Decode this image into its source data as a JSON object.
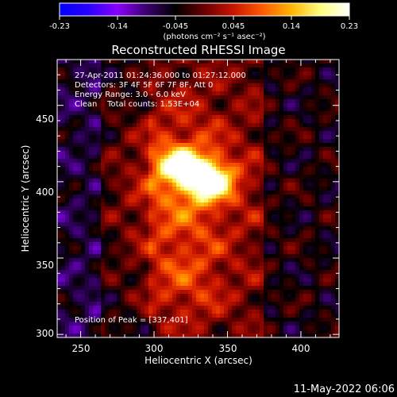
{
  "colorbar": {
    "ticks": [
      "-0.23",
      "-0.14",
      "-0.045",
      "0.045",
      "0.14",
      "0.23"
    ],
    "unit_label": "(photons cm⁻² s⁻¹ asec⁻²)"
  },
  "colors": {
    "background": "#000000",
    "text": "#ffffff",
    "colormap": [
      "#0000ff",
      "#2a00ff",
      "#8a00ff",
      "#3a006e",
      "#000000",
      "#6a0000",
      "#c81400",
      "#ff5a00",
      "#ffb400",
      "#ffff80",
      "#ffffff"
    ]
  },
  "chart_data": {
    "type": "heatmap",
    "title": "Reconstructed RHESSI Image",
    "xlabel": "Heliocentric X (arcsec)",
    "ylabel": "Heliocentric Y (arcsec)",
    "xlim": [
      234,
      426
    ],
    "ylim": [
      298,
      480
    ],
    "x_ticks": [
      250,
      300,
      350,
      400
    ],
    "y_ticks": [
      300,
      350,
      400,
      450
    ],
    "x_tick_labels": [
      "250",
      "300",
      "350",
      "400"
    ],
    "y_tick_labels": [
      "300",
      "350",
      "400",
      "450"
    ],
    "color_range": [
      -0.23,
      0.23
    ],
    "peak": [
      337,
      401
    ],
    "annotations": [
      "27-Apr-2011 01:24:36.000 to 01:27:12.000",
      "Detectors: 3F 4F 5F 6F 7F 8F, Att 0",
      "Energy Range: 3.0 - 6.0 keV",
      "Clean    Total counts: 1.53E+04"
    ],
    "peak_label": "Position of Peak = [337,401]"
  },
  "timestamp": "11-May-2022 06:06"
}
